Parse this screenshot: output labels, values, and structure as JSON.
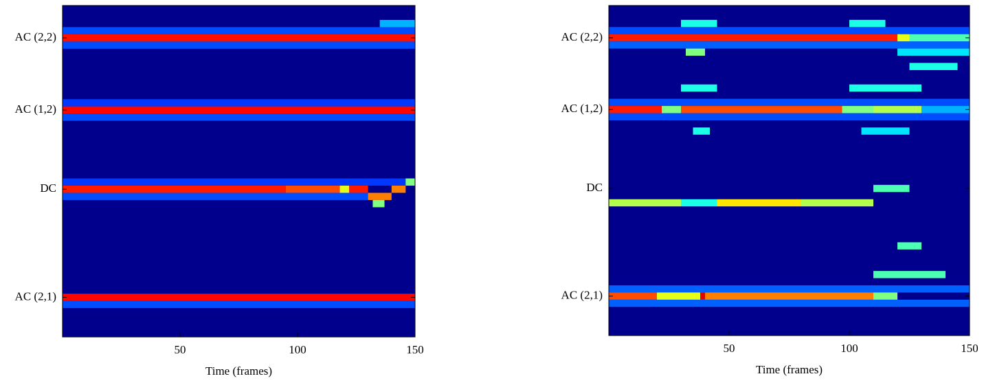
{
  "chart_data": [
    {
      "type": "heatmap",
      "colormap": "jet",
      "xlabel": "Time (frames)",
      "xlim": [
        0,
        150
      ],
      "xticks": [
        50,
        100,
        150
      ],
      "ylim": [
        0,
        46
      ],
      "yticks": [
        {
          "value": 4.5,
          "label": "AC (2,2)"
        },
        {
          "value": 14.5,
          "label": "AC (1,2)"
        },
        {
          "value": 25.5,
          "label": "DC"
        },
        {
          "value": 40.5,
          "label": "AC (2,1)"
        }
      ],
      "cells": {
        "x0": [
          0,
          0,
          0,
          0,
          0,
          0,
          0,
          135,
          0,
          0,
          0,
          95,
          118,
          122,
          130,
          132,
          140,
          146,
          0
        ],
        "x1": [
          150,
          150,
          150,
          150,
          130,
          150,
          146,
          150,
          150,
          150,
          95,
          118,
          122,
          130,
          140,
          137,
          146,
          150,
          150
        ],
        "row": [
          3.5,
          5.5,
          13.5,
          15.5,
          26.5,
          41.5,
          24.5,
          2.5,
          4.5,
          14.5,
          25.5,
          25.5,
          25.5,
          25.5,
          26.5,
          27.5,
          25.5,
          24.5,
          40.5
        ],
        "z": [
          0.2,
          0.2,
          0.18,
          0.2,
          0.2,
          0.2,
          0.18,
          0.3,
          0.86,
          0.87,
          0.85,
          0.8,
          0.6,
          0.85,
          0.75,
          0.5,
          0.75,
          0.5,
          0.87
        ]
      }
    },
    {
      "type": "heatmap",
      "colormap": "jet",
      "xlabel": "Time (frames)",
      "xlim": [
        0,
        150
      ],
      "xticks": [
        50,
        100,
        150
      ],
      "ylim": [
        0,
        46
      ],
      "yticks": [
        {
          "value": 4.5,
          "label": "AC (2,2)"
        },
        {
          "value": 14.5,
          "label": "AC (1,2)"
        },
        {
          "value": 25.5,
          "label": "DC"
        },
        {
          "value": 40.5,
          "label": "AC (2,1)"
        }
      ],
      "cells": {
        "x0": [
          0,
          0,
          0,
          0,
          0,
          0,
          30,
          32,
          100,
          120,
          125,
          30,
          35,
          100,
          105,
          120,
          110,
          0,
          120,
          125,
          0,
          22,
          30,
          97,
          110,
          130,
          0,
          30,
          45,
          80,
          110,
          0,
          20,
          40,
          110,
          38
        ],
        "x1": [
          150,
          150,
          150,
          150,
          150,
          150,
          45,
          40,
          115,
          150,
          145,
          45,
          42,
          130,
          125,
          130,
          140,
          120,
          125,
          150,
          22,
          30,
          97,
          110,
          130,
          150,
          30,
          45,
          80,
          110,
          125,
          20,
          40,
          110,
          120,
          40
        ],
        "row": [
          3.5,
          5.5,
          13.5,
          15.5,
          39.5,
          41.5,
          2.5,
          6.5,
          2.5,
          6.5,
          8.5,
          11.5,
          17.5,
          11.5,
          17.5,
          33.5,
          37.5,
          4.5,
          4.5,
          4.5,
          14.5,
          14.5,
          14.5,
          14.5,
          14.5,
          14.5,
          27.5,
          27.5,
          27.5,
          27.5,
          25.5,
          40.5,
          40.5,
          40.5,
          40.5,
          40.5
        ],
        "z": [
          0.2,
          0.22,
          0.2,
          0.2,
          0.22,
          0.22,
          0.4,
          0.5,
          0.4,
          0.35,
          0.4,
          0.4,
          0.4,
          0.4,
          0.35,
          0.45,
          0.45,
          0.85,
          0.6,
          0.45,
          0.85,
          0.5,
          0.8,
          0.5,
          0.55,
          0.3,
          0.55,
          0.4,
          0.65,
          0.55,
          0.45,
          0.8,
          0.6,
          0.75,
          0.5,
          0.9
        ]
      }
    }
  ]
}
